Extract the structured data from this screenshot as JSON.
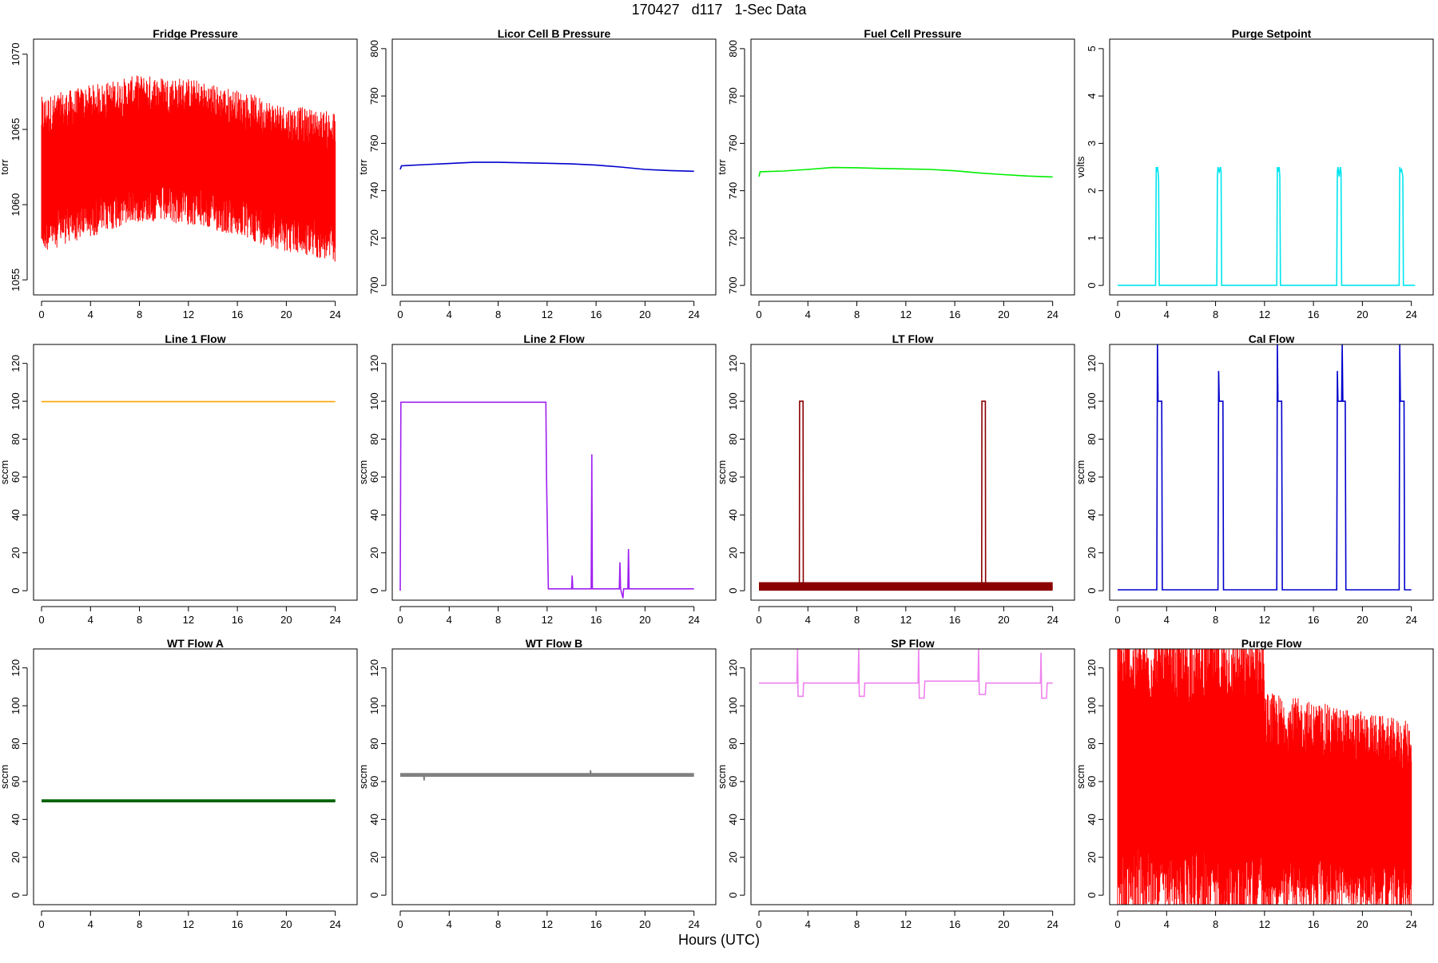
{
  "figure": {
    "title": "170427   d117   1-Sec Data",
    "xlabel": "Hours (UTC)"
  },
  "chart_data": [
    {
      "name": "fridge-pressure",
      "type": "line",
      "title": "Fridge Pressure",
      "ylabel": "torr",
      "color": "#ff0000",
      "xlim": [
        0,
        24
      ],
      "ylim": [
        1054,
        1071
      ],
      "yticks": [
        1055,
        1060,
        1065,
        1070
      ],
      "xticks": [
        0,
        4,
        8,
        12,
        16,
        20,
        24
      ],
      "noise": {
        "x": [
          0,
          4,
          8,
          12,
          16,
          20,
          24
        ],
        "lower": [
          1057.5,
          1058.5,
          1059.5,
          1059.3,
          1058.5,
          1057.5,
          1056.8
        ],
        "upper": [
          1066.5,
          1067.3,
          1068.0,
          1067.8,
          1067.0,
          1066.0,
          1065.5
        ]
      }
    },
    {
      "name": "licor-cell-b-pressure",
      "type": "line",
      "title": "Licor Cell B Pressure",
      "ylabel": "torr",
      "color": "#0000cd",
      "xlim": [
        0,
        24
      ],
      "ylim": [
        696,
        804
      ],
      "yticks": [
        700,
        720,
        740,
        760,
        780,
        800
      ],
      "xticks": [
        0,
        4,
        8,
        12,
        16,
        20,
        24
      ],
      "x": [
        0,
        0.1,
        2,
        4,
        6,
        8,
        10,
        12,
        14,
        16,
        18,
        20,
        22,
        24
      ],
      "y": [
        749,
        750.5,
        751,
        751.5,
        752,
        752,
        751.8,
        751.6,
        751.3,
        750.8,
        750,
        749,
        748.5,
        748.2
      ]
    },
    {
      "name": "fuel-cell-pressure",
      "type": "line",
      "title": "Fuel Cell Pressure",
      "ylabel": "torr",
      "color": "#00ee00",
      "xlim": [
        0,
        24
      ],
      "ylim": [
        696,
        804
      ],
      "yticks": [
        700,
        720,
        740,
        760,
        780,
        800
      ],
      "xticks": [
        0,
        4,
        8,
        12,
        16,
        20,
        24
      ],
      "x": [
        0,
        0.1,
        2,
        4,
        6,
        8,
        10,
        12,
        14,
        16,
        18,
        20,
        22,
        24
      ],
      "y": [
        746,
        748,
        748.3,
        749,
        749.8,
        749.7,
        749.4,
        749.2,
        749,
        748.4,
        747.5,
        746.8,
        746.2,
        745.8
      ]
    },
    {
      "name": "purge-setpoint",
      "type": "line",
      "title": "Purge Setpoint",
      "ylabel": "volts",
      "color": "#00e5ee",
      "xlim": [
        0,
        24
      ],
      "ylim": [
        -0.2,
        5.2
      ],
      "yticks": [
        0,
        1,
        2,
        3,
        4,
        5
      ],
      "xticks": [
        0,
        4,
        8,
        12,
        16,
        20,
        24
      ],
      "x": [
        0,
        3.1,
        3.15,
        3.2,
        3.25,
        3.3,
        3.35,
        3.4,
        3.45,
        8.1,
        8.15,
        8.2,
        8.3,
        8.4,
        8.45,
        8.5,
        8.55,
        13.0,
        13.05,
        13.1,
        13.2,
        13.25,
        13.3,
        17.9,
        17.95,
        18.0,
        18.1,
        18.2,
        18.25,
        18.3,
        18.35,
        23.0,
        23.05,
        23.1,
        23.2,
        23.3,
        23.35,
        24.3
      ],
      "y": [
        0,
        0,
        2.5,
        2.4,
        2.5,
        2.4,
        2.2,
        0,
        0,
        0,
        2.3,
        2.5,
        2.4,
        2.5,
        2.4,
        0,
        0,
        0,
        2.5,
        2.4,
        2.5,
        2.3,
        0,
        0,
        2.4,
        2.5,
        2.3,
        2.5,
        2.4,
        0,
        0,
        0,
        2.5,
        2.4,
        2.45,
        2.3,
        0,
        0
      ]
    },
    {
      "name": "line-1-flow",
      "type": "line",
      "title": "Line 1 Flow",
      "ylabel": "sccm",
      "color": "#ffa500",
      "xlim": [
        0,
        24
      ],
      "ylim": [
        -5,
        130
      ],
      "yticks": [
        0,
        20,
        40,
        60,
        80,
        100,
        120
      ],
      "xticks": [
        0,
        4,
        8,
        12,
        16,
        20,
        24
      ],
      "x": [
        0,
        24
      ],
      "y": [
        99.8,
        99.8
      ]
    },
    {
      "name": "line-2-flow",
      "type": "line",
      "title": "Line 2 Flow",
      "ylabel": "sccm",
      "color": "#a020f0",
      "xlim": [
        0,
        24
      ],
      "ylim": [
        -5,
        130
      ],
      "yticks": [
        0,
        20,
        40,
        60,
        80,
        100,
        120
      ],
      "xticks": [
        0,
        4,
        8,
        12,
        16,
        20,
        24
      ],
      "x": [
        0,
        0.05,
        11.9,
        11.95,
        12.1,
        12.5,
        14,
        14.05,
        14.1,
        15.6,
        15.65,
        15.7,
        16,
        17.9,
        17.95,
        18.0,
        18.2,
        18.25,
        18.3,
        18.6,
        18.65,
        18.7,
        24
      ],
      "y": [
        0,
        99.5,
        99.5,
        60,
        1,
        1,
        1,
        8,
        1,
        1,
        72,
        1,
        1,
        1,
        15,
        1,
        -4,
        1,
        1,
        1,
        22,
        1,
        1
      ]
    },
    {
      "name": "lt-flow",
      "type": "line",
      "title": "LT Flow",
      "ylabel": "sccm",
      "color": "#8b0000",
      "xlim": [
        0,
        24
      ],
      "ylim": [
        -5,
        130
      ],
      "yticks": [
        0,
        20,
        40,
        60,
        80,
        100,
        120
      ],
      "xticks": [
        0,
        4,
        8,
        12,
        16,
        20,
        24
      ],
      "x": [
        0,
        3.3,
        3.32,
        3.6,
        3.62,
        18.2,
        18.22,
        18.5,
        18.52,
        24
      ],
      "y": [
        2,
        2,
        100,
        100,
        2,
        2,
        100,
        100,
        2,
        2
      ],
      "band": [
        0,
        4.5
      ]
    },
    {
      "name": "cal-flow",
      "type": "line",
      "title": "Cal Flow",
      "ylabel": "sccm",
      "color": "#0000cd",
      "xlim": [
        0,
        24
      ],
      "ylim": [
        -5,
        130
      ],
      "yticks": [
        0,
        20,
        40,
        60,
        80,
        100,
        120
      ],
      "xticks": [
        0,
        4,
        8,
        12,
        16,
        20,
        24
      ],
      "x": [
        0,
        3.2,
        3.25,
        3.3,
        3.6,
        3.65,
        8.2,
        8.25,
        8.3,
        8.6,
        8.65,
        13.0,
        13.05,
        13.1,
        13.4,
        13.45,
        17.9,
        17.95,
        18.0,
        18.3,
        18.35,
        18.4,
        18.6,
        18.65,
        23.0,
        23.05,
        23.1,
        23.4,
        23.45,
        24
      ],
      "y": [
        0.5,
        0.5,
        130,
        100,
        100,
        0.5,
        0.5,
        116,
        100,
        100,
        0.5,
        0.5,
        130,
        100,
        100,
        0.5,
        0.5,
        116,
        100,
        100,
        130,
        100,
        100,
        0.5,
        0.5,
        130,
        100,
        100,
        0.5,
        0.5
      ]
    },
    {
      "name": "wt-flow-a",
      "type": "line",
      "title": "WT Flow A",
      "ylabel": "sccm",
      "color": "#006400",
      "xlim": [
        0,
        24
      ],
      "ylim": [
        -5,
        130
      ],
      "yticks": [
        0,
        20,
        40,
        60,
        80,
        100,
        120
      ],
      "xticks": [
        0,
        4,
        8,
        12,
        16,
        20,
        24
      ],
      "x": [
        0,
        24
      ],
      "y": [
        49.8,
        49.8
      ],
      "band": [
        49.0,
        50.6
      ]
    },
    {
      "name": "wt-flow-b",
      "type": "line",
      "title": "WT Flow B",
      "ylabel": "sccm",
      "color": "#808080",
      "xlim": [
        0,
        24
      ],
      "ylim": [
        -5,
        130
      ],
      "yticks": [
        0,
        20,
        40,
        60,
        80,
        100,
        120
      ],
      "xticks": [
        0,
        4,
        8,
        12,
        16,
        20,
        24
      ],
      "x": [
        0,
        1.9,
        1.95,
        2.0,
        10,
        12,
        14,
        15.5,
        15.55,
        15.6,
        16,
        18,
        20,
        24
      ],
      "y": [
        63.5,
        63.5,
        60.5,
        63.5,
        63.5,
        63.5,
        63.5,
        63.5,
        66,
        63.5,
        63.5,
        63.5,
        63.5,
        63.5
      ],
      "band": [
        62.5,
        64.5
      ]
    },
    {
      "name": "sp-flow",
      "type": "line",
      "title": "SP Flow",
      "ylabel": "sccm",
      "color": "#ee82ee",
      "xlim": [
        0,
        24
      ],
      "ylim": [
        -5,
        130
      ],
      "yticks": [
        0,
        20,
        40,
        60,
        80,
        100,
        120
      ],
      "xticks": [
        0,
        4,
        8,
        12,
        16,
        20,
        24
      ],
      "x": [
        0,
        3.1,
        3.15,
        3.2,
        3.6,
        3.65,
        8.1,
        8.15,
        8.2,
        8.6,
        8.65,
        13.0,
        13.05,
        13.1,
        13.5,
        13.55,
        17.9,
        17.95,
        18.0,
        18.5,
        18.55,
        23.0,
        23.05,
        23.1,
        23.5,
        23.55,
        24
      ],
      "y": [
        112,
        112,
        130,
        105,
        105,
        112,
        112,
        130,
        105,
        105,
        112,
        112,
        130,
        104,
        104,
        113,
        113,
        130,
        106,
        106,
        112,
        112,
        128,
        104,
        104,
        112,
        112
      ]
    },
    {
      "name": "purge-flow",
      "type": "line",
      "title": "Purge Flow",
      "ylabel": "sccm",
      "color": "#ff0000",
      "xlim": [
        0,
        24
      ],
      "ylim": [
        -5,
        130
      ],
      "yticks": [
        0,
        20,
        40,
        60,
        80,
        100,
        120
      ],
      "xticks": [
        0,
        4,
        8,
        12,
        16,
        20,
        24
      ],
      "noise": {
        "x": [
          0,
          4,
          8,
          11.9,
          12.0,
          16,
          20,
          24
        ],
        "lower": [
          -3,
          -3,
          -3,
          -3,
          -3,
          -3,
          -3,
          -3
        ],
        "upper": [
          130,
          130,
          130,
          130,
          100,
          95,
          90,
          85
        ]
      }
    }
  ]
}
